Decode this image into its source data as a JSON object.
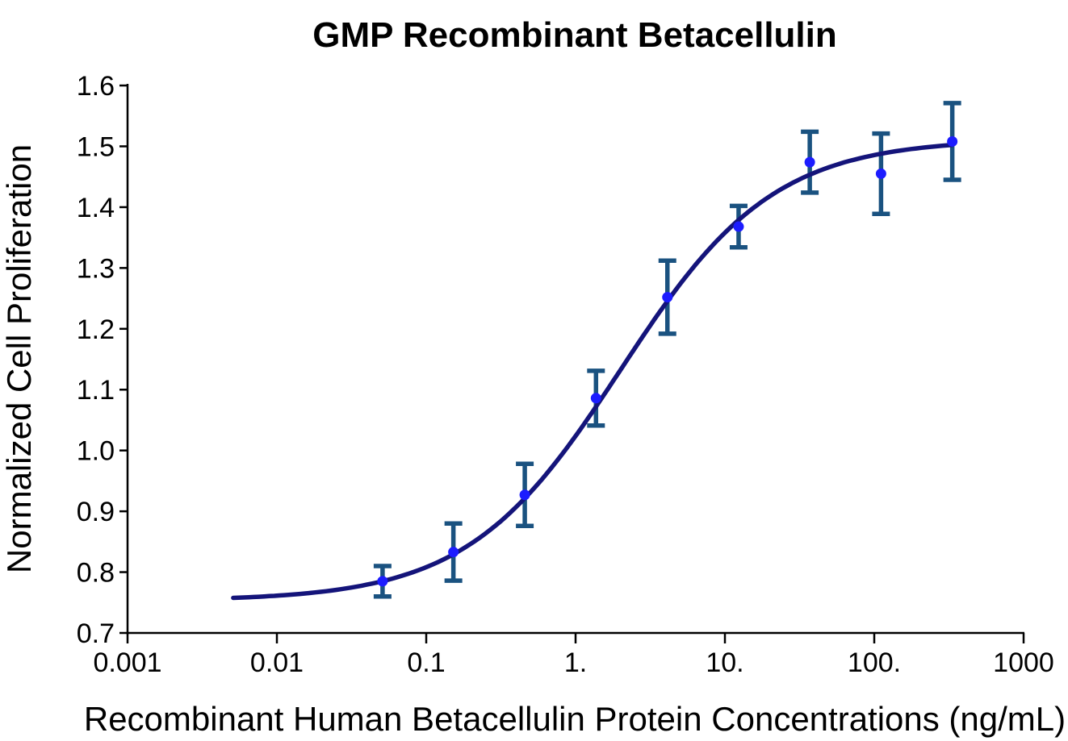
{
  "chart_data": {
    "type": "scatter",
    "title": "GMP Recombinant Betacellulin",
    "xlabel": "Recombinant Human Betacellulin Protein Concentrations (ng/mL)",
    "ylabel": "Normalized Cell Proliferation",
    "x_scale": "log",
    "xlim": [
      0.001,
      1000
    ],
    "ylim": [
      0.7,
      1.6
    ],
    "grid": false,
    "legend": "none",
    "x_tick_values": [
      0.001,
      0.01,
      0.1,
      1,
      10,
      100,
      1000
    ],
    "x_tick_labels": [
      "0.001",
      "0.01",
      "0.1",
      "1.",
      "10.",
      "100.",
      "1000"
    ],
    "y_tick_values": [
      0.7,
      0.8,
      0.9,
      1.0,
      1.1,
      1.2,
      1.3,
      1.4,
      1.5,
      1.6
    ],
    "y_tick_labels": [
      "0.7",
      "0.8",
      "0.9",
      "1.0",
      "1.1",
      "1.2",
      "1.3",
      "1.4",
      "1.5",
      "1.6"
    ],
    "series": [
      {
        "x": [
          0.051,
          0.152,
          0.457,
          1.37,
          4.12,
          12.35,
          37,
          111,
          333
        ],
        "y": [
          0.785,
          0.833,
          0.927,
          1.086,
          1.252,
          1.368,
          1.474,
          1.455,
          1.508
        ],
        "y_err": [
          0.025,
          0.047,
          0.051,
          0.045,
          0.06,
          0.034,
          0.05,
          0.066,
          0.063
        ]
      }
    ],
    "fit_curve": {
      "model": "4PL",
      "bottom": 0.753,
      "top": 1.512,
      "ec50": 2.0,
      "hill": 0.85,
      "x_range": [
        0.0051,
        333
      ]
    },
    "colors": {
      "curve": "#14147a",
      "marker": "#1c1cff",
      "error_bar": "#1a5280",
      "axis": "#000000",
      "text": "#000000",
      "background": "#ffffff"
    }
  }
}
